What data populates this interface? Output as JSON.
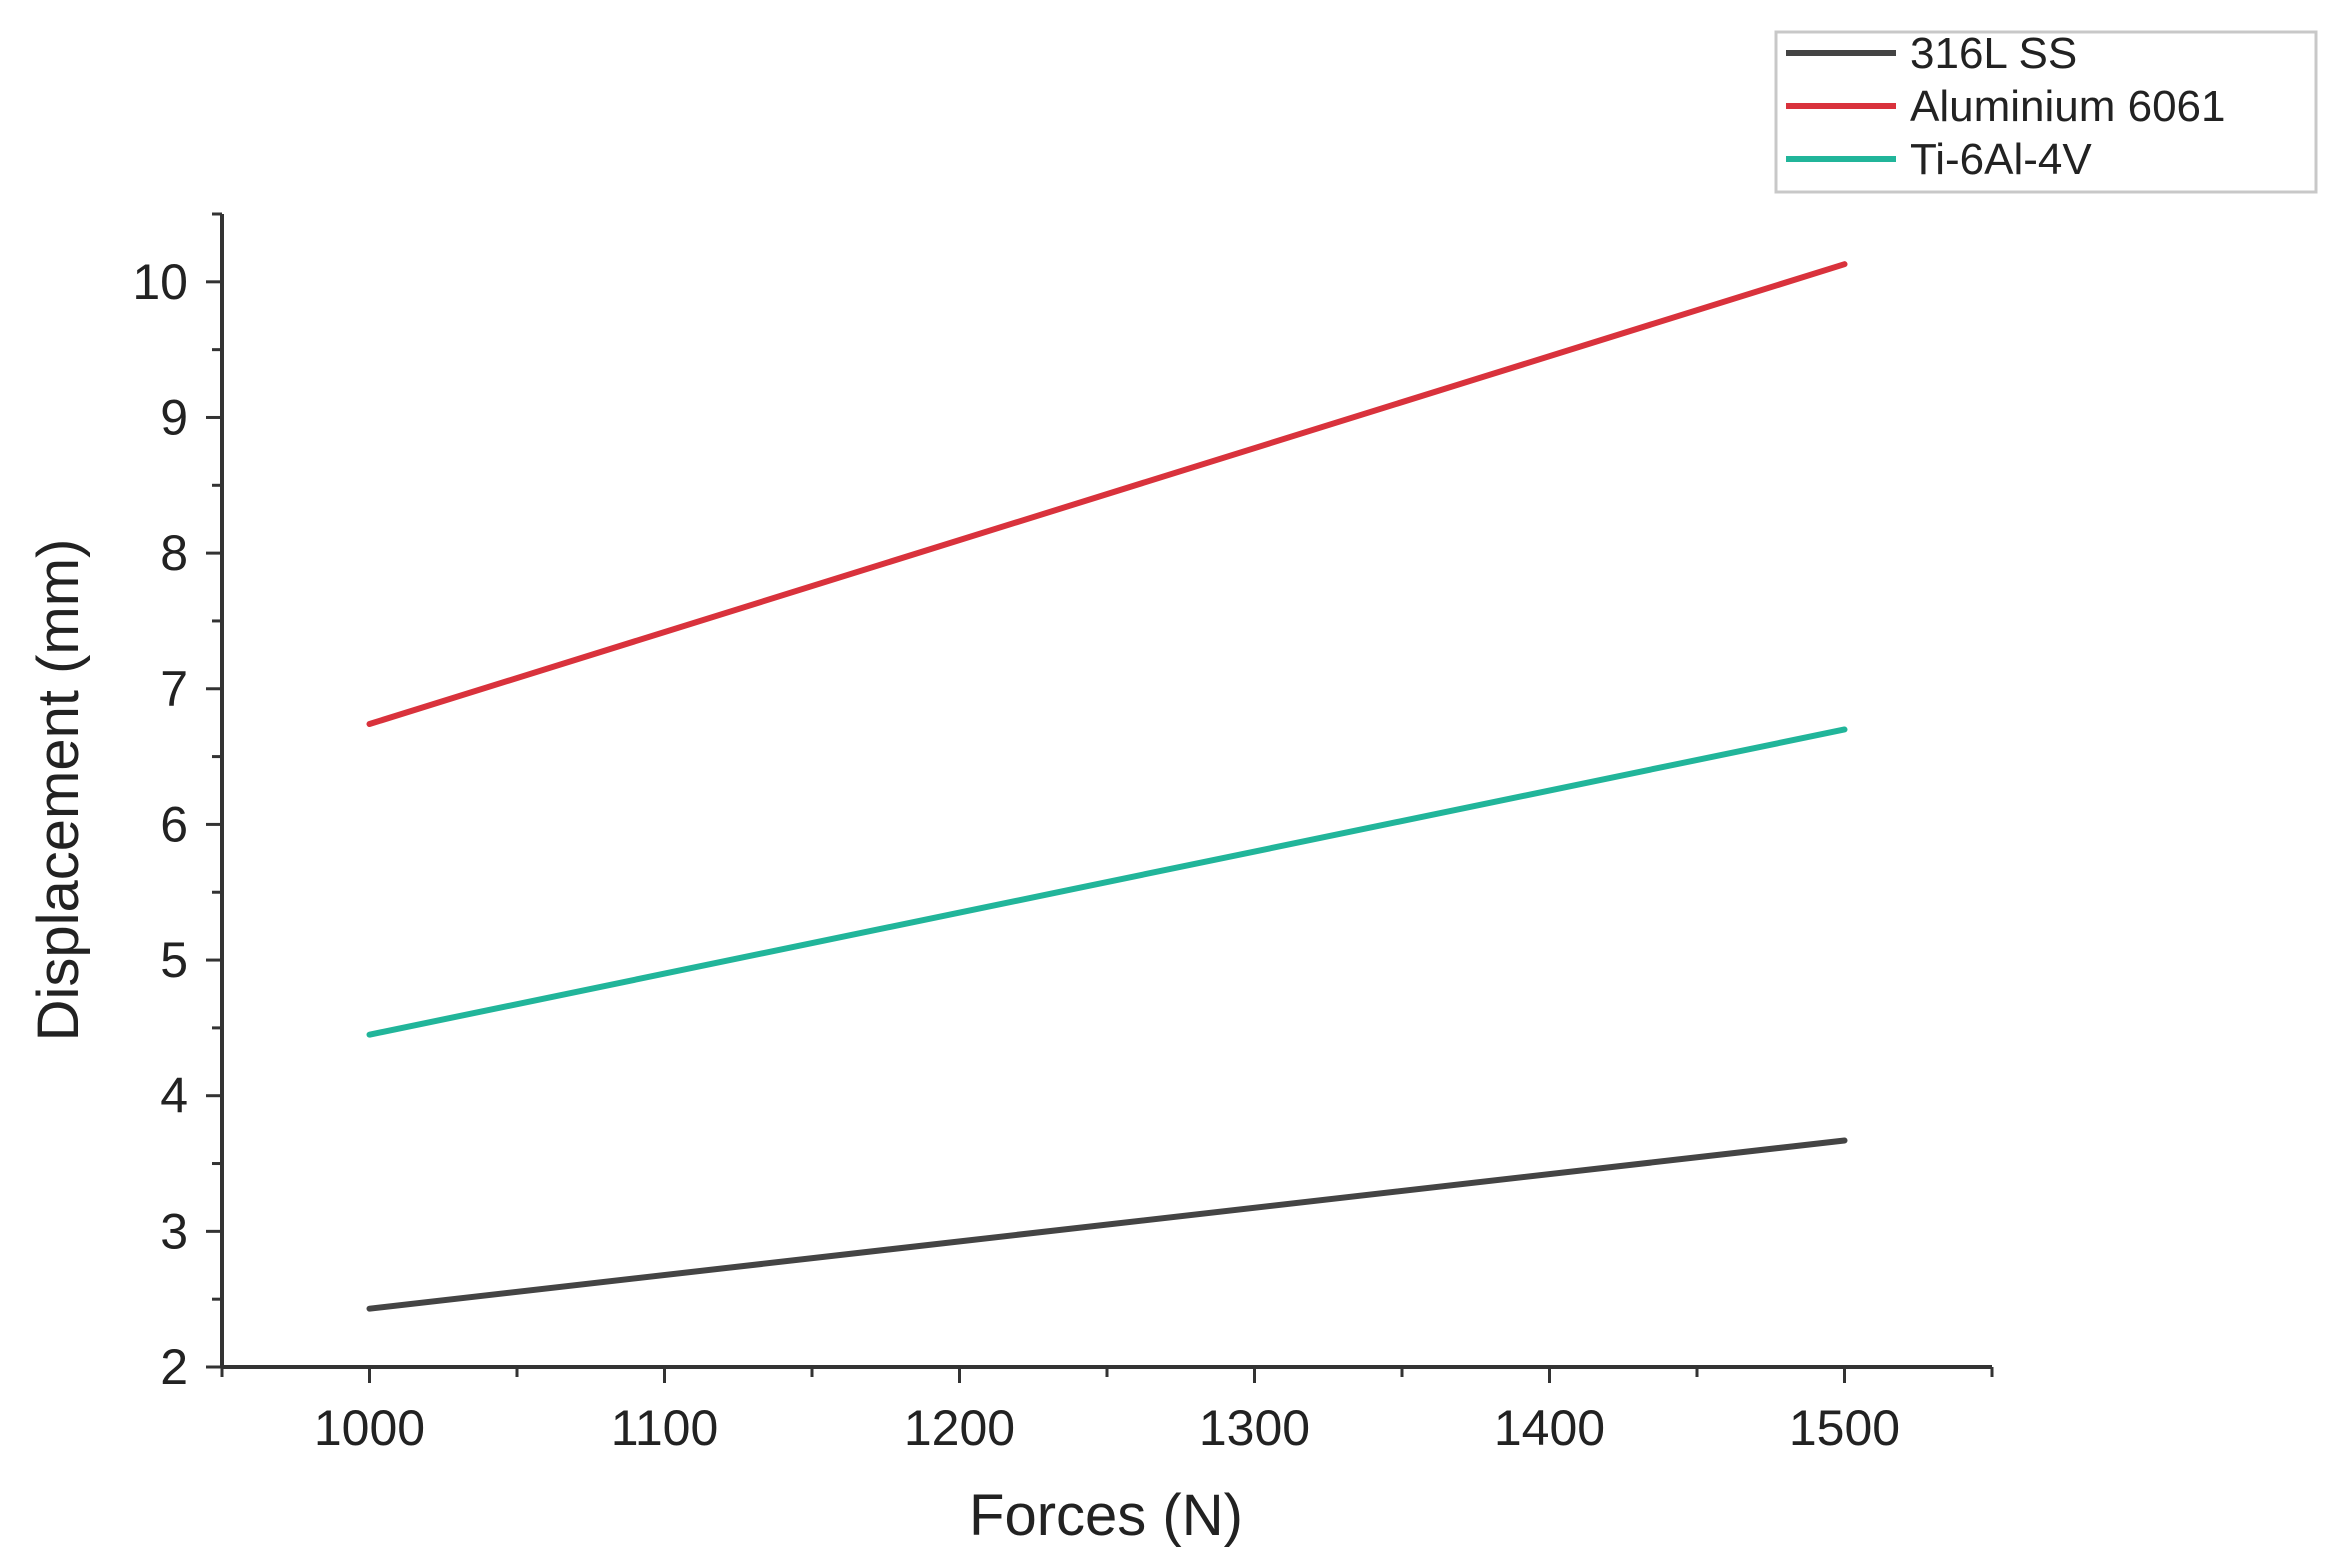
{
  "chart_data": {
    "type": "line",
    "title": "",
    "xlabel": "Forces (N)",
    "ylabel": "Displacement (mm)",
    "xlim": [
      950,
      1550
    ],
    "ylim": [
      2,
      10.5
    ],
    "xticks": [
      1000,
      1100,
      1200,
      1300,
      1400,
      1500
    ],
    "yticks": [
      2,
      3,
      4,
      5,
      6,
      7,
      8,
      9,
      10
    ],
    "grid": false,
    "legend_position": "top-right",
    "series": [
      {
        "name": "316L SS",
        "color": "#444444",
        "x": [
          1000,
          1500
        ],
        "y": [
          2.43,
          3.67
        ]
      },
      {
        "name": "Aluminium 6061",
        "color": "#d9323c",
        "x": [
          1000,
          1500
        ],
        "y": [
          6.74,
          10.13
        ]
      },
      {
        "name": "Ti-6Al-4V",
        "color": "#21b59a",
        "x": [
          1000,
          1500
        ],
        "y": [
          4.45,
          6.7
        ]
      }
    ]
  }
}
